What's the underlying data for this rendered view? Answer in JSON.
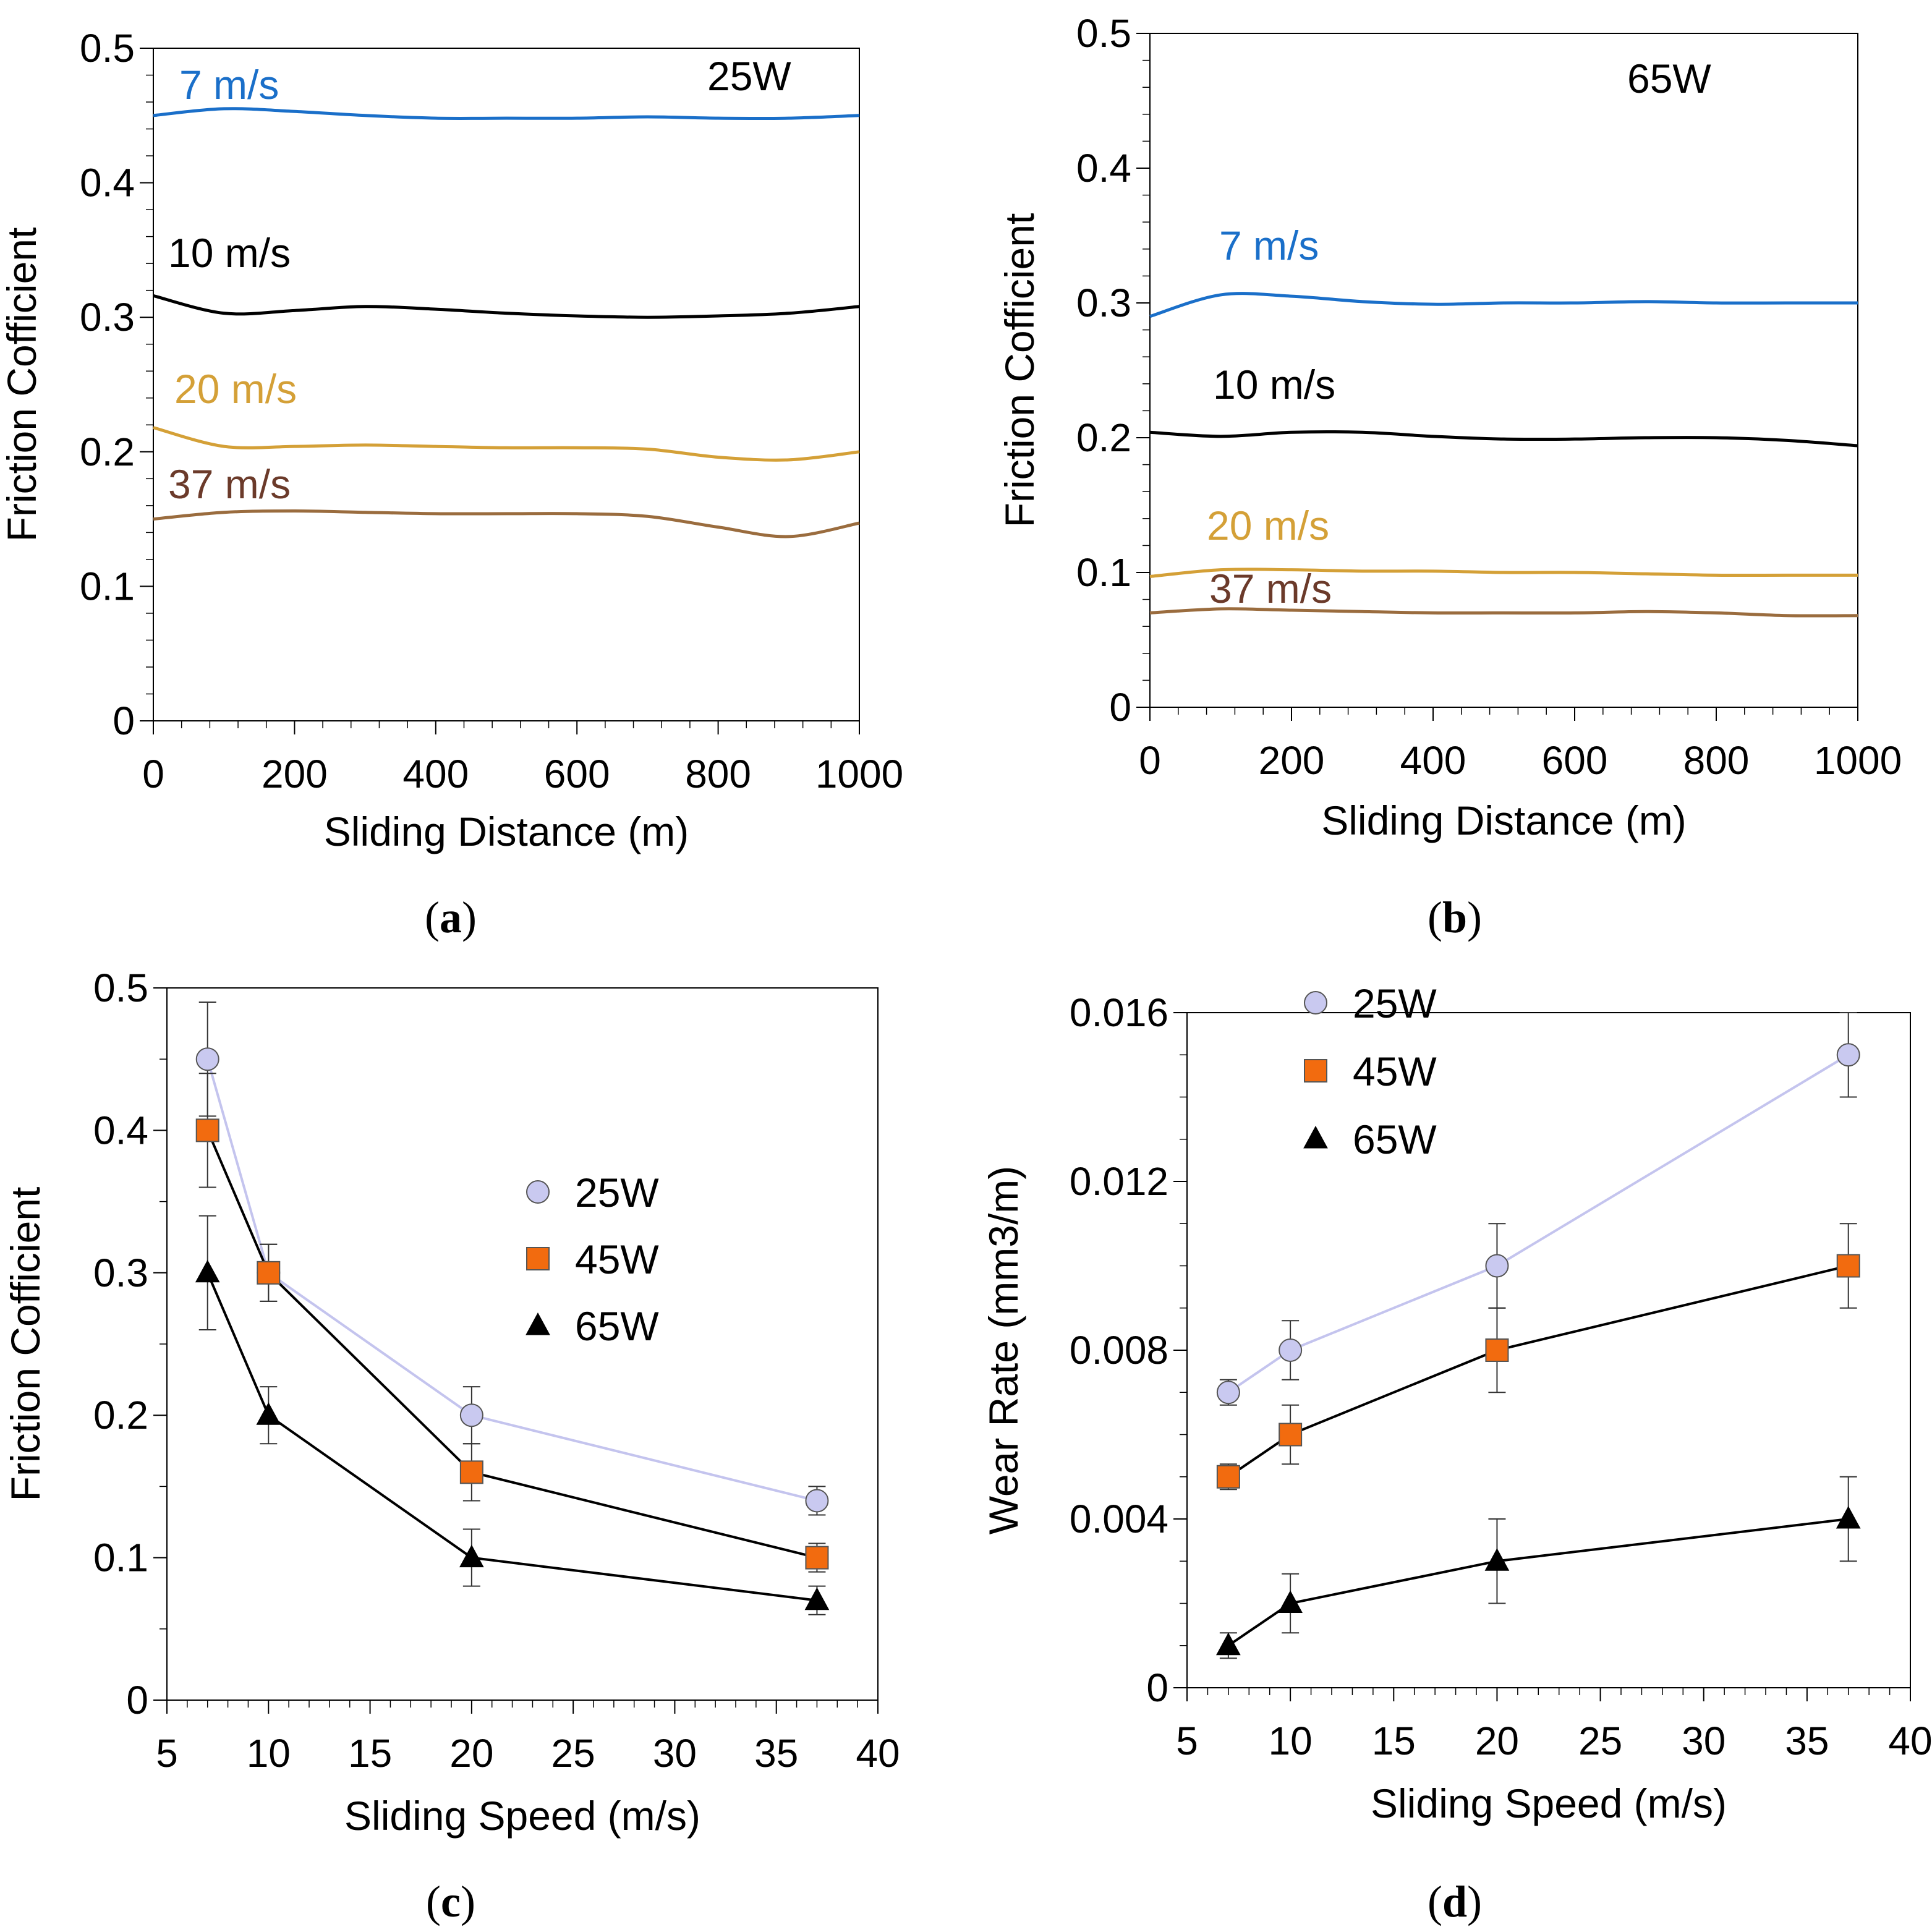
{
  "chart_data": [
    {
      "id": "a",
      "type": "line",
      "caption_letter": "a",
      "xlabel": "Sliding Distance (m)",
      "ylabel": "Friction Cofficient",
      "xlim": [
        0,
        1000
      ],
      "ylim": [
        0,
        0.5
      ],
      "xticks": [
        "0",
        "200",
        "400",
        "600",
        "800",
        "1000"
      ],
      "yticks": [
        "0",
        "0.1",
        "0.2",
        "0.3",
        "0.4",
        "0.5"
      ],
      "annotation": "25W",
      "series": [
        {
          "name": "7 m/s",
          "color": "#1a6fc9",
          "x": [
            0,
            100,
            200,
            300,
            400,
            500,
            600,
            700,
            800,
            900,
            1000
          ],
          "y": [
            0.45,
            0.455,
            0.453,
            0.45,
            0.448,
            0.448,
            0.448,
            0.449,
            0.448,
            0.448,
            0.45
          ]
        },
        {
          "name": "10 m/s",
          "color": "#000000",
          "x": [
            0,
            100,
            200,
            300,
            400,
            500,
            600,
            700,
            800,
            900,
            1000
          ],
          "y": [
            0.316,
            0.303,
            0.305,
            0.308,
            0.306,
            0.303,
            0.301,
            0.3,
            0.301,
            0.303,
            0.308
          ]
        },
        {
          "name": "20 m/s",
          "color": "#d4a037",
          "x": [
            0,
            100,
            200,
            300,
            400,
            500,
            600,
            700,
            800,
            900,
            1000
          ],
          "y": [
            0.218,
            0.204,
            0.204,
            0.205,
            0.204,
            0.203,
            0.203,
            0.202,
            0.196,
            0.194,
            0.2
          ]
        },
        {
          "name": "37 m/s",
          "color": "#9a6c3e",
          "x": [
            0,
            100,
            200,
            300,
            400,
            500,
            600,
            700,
            800,
            900,
            1000
          ],
          "y": [
            0.15,
            0.155,
            0.156,
            0.155,
            0.154,
            0.154,
            0.154,
            0.152,
            0.144,
            0.137,
            0.147
          ]
        }
      ]
    },
    {
      "id": "b",
      "type": "line",
      "caption_letter": "b",
      "xlabel": "Sliding Distance (m)",
      "ylabel": "Friction Cofficient",
      "xlim": [
        0,
        1000
      ],
      "ylim": [
        0,
        0.5
      ],
      "xticks": [
        "0",
        "200",
        "400",
        "600",
        "800",
        "1000"
      ],
      "yticks": [
        "0",
        "0.1",
        "0.2",
        "0.3",
        "0.4",
        "0.5"
      ],
      "annotation": "65W",
      "series": [
        {
          "name": "7 m/s",
          "color": "#1a6fc9",
          "x": [
            0,
            100,
            200,
            300,
            400,
            500,
            600,
            700,
            800,
            900,
            1000
          ],
          "y": [
            0.29,
            0.306,
            0.305,
            0.301,
            0.299,
            0.3,
            0.3,
            0.301,
            0.3,
            0.3,
            0.3
          ]
        },
        {
          "name": "10 m/s",
          "color": "#000000",
          "x": [
            0,
            100,
            200,
            300,
            400,
            500,
            600,
            700,
            800,
            900,
            1000
          ],
          "y": [
            0.204,
            0.201,
            0.204,
            0.204,
            0.201,
            0.199,
            0.199,
            0.2,
            0.2,
            0.198,
            0.194
          ]
        },
        {
          "name": "20 m/s",
          "color": "#d4a037",
          "x": [
            0,
            100,
            200,
            300,
            400,
            500,
            600,
            700,
            800,
            900,
            1000
          ],
          "y": [
            0.097,
            0.102,
            0.102,
            0.101,
            0.101,
            0.1,
            0.1,
            0.099,
            0.098,
            0.098,
            0.098
          ]
        },
        {
          "name": "37 m/s",
          "color": "#9a6c3e",
          "x": [
            0,
            100,
            200,
            300,
            400,
            500,
            600,
            700,
            800,
            900,
            1000
          ],
          "y": [
            0.07,
            0.073,
            0.072,
            0.071,
            0.07,
            0.07,
            0.07,
            0.071,
            0.07,
            0.068,
            0.068
          ]
        }
      ]
    },
    {
      "id": "c",
      "type": "line",
      "caption_letter": "c",
      "xlabel": "Sliding Speed (m/s)",
      "ylabel": "Friction Cofficient",
      "xlim": [
        5,
        40
      ],
      "ylim": [
        0,
        0.5
      ],
      "xticks": [
        "5",
        "10",
        "15",
        "20",
        "25",
        "30",
        "35",
        "40"
      ],
      "yticks": [
        "0",
        "0.1",
        "0.2",
        "0.3",
        "0.4",
        "0.5"
      ],
      "legend_position": "center-right",
      "x": [
        7,
        10,
        20,
        37
      ],
      "series": [
        {
          "name": "25W",
          "marker": "circle",
          "color": "#c9c9f0",
          "line_color": "#c4c4ee",
          "values": [
            0.45,
            0.3,
            0.2,
            0.14
          ],
          "errors": [
            0.04,
            0.02,
            0.02,
            0.01
          ]
        },
        {
          "name": "45W",
          "marker": "square",
          "color": "#f26b0f",
          "line_color": "#000000",
          "values": [
            0.4,
            0.3,
            0.16,
            0.1
          ],
          "errors": [
            0.04,
            0.02,
            0.02,
            0.01
          ]
        },
        {
          "name": "65W",
          "marker": "triangle",
          "color": "#000000",
          "line_color": "#000000",
          "values": [
            0.3,
            0.2,
            0.1,
            0.07
          ],
          "errors": [
            0.04,
            0.02,
            0.02,
            0.01
          ]
        }
      ]
    },
    {
      "id": "d",
      "type": "line",
      "caption_letter": "d",
      "xlabel": "Sliding Speed (m/s)",
      "ylabel": "Wear Rate (mm3/m)",
      "xlim": [
        5,
        40
      ],
      "ylim": [
        0,
        0.016
      ],
      "xticks": [
        "5",
        "10",
        "15",
        "20",
        "25",
        "30",
        "35",
        "40"
      ],
      "yticks": [
        "0",
        "0.004",
        "0.008",
        "0.012",
        "0.016"
      ],
      "legend_position": "top-left",
      "x": [
        7,
        10,
        20,
        37
      ],
      "series": [
        {
          "name": "25W",
          "marker": "circle",
          "color": "#c9c9f0",
          "line_color": "#c4c4ee",
          "values": [
            0.007,
            0.008,
            0.01,
            0.015
          ],
          "errors": [
            0.0003,
            0.0007,
            0.001,
            0.001
          ]
        },
        {
          "name": "45W",
          "marker": "square",
          "color": "#f26b0f",
          "line_color": "#000000",
          "values": [
            0.005,
            0.006,
            0.008,
            0.01
          ],
          "errors": [
            0.0003,
            0.0007,
            0.001,
            0.001
          ]
        },
        {
          "name": "65W",
          "marker": "triangle",
          "color": "#000000",
          "line_color": "#000000",
          "values": [
            0.001,
            0.002,
            0.003,
            0.004
          ],
          "errors": [
            0.0003,
            0.0007,
            0.001,
            0.001
          ]
        }
      ]
    }
  ]
}
